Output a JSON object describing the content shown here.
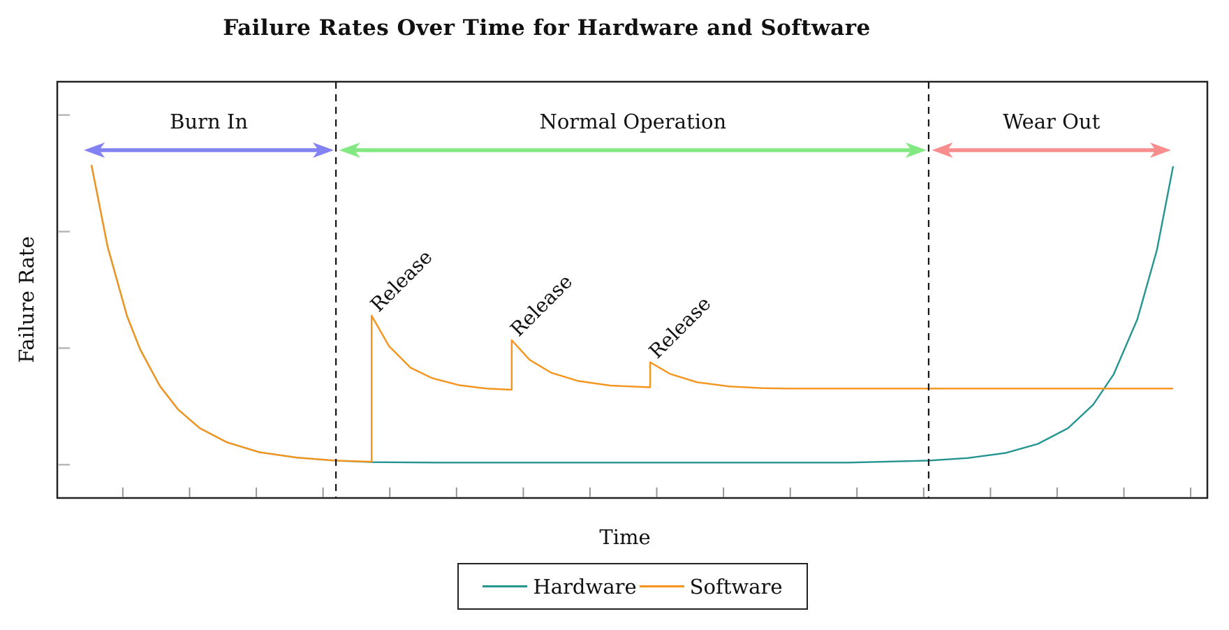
{
  "title": "Failure Rates Over Time for Hardware and Software",
  "axes": {
    "x_label": "Time",
    "y_label": "Failure Rate"
  },
  "legend": {
    "items": [
      {
        "label": "Hardware",
        "color": "#239490"
      },
      {
        "label": "Software",
        "color": "#f5941d"
      }
    ]
  },
  "chart_data": {
    "type": "line",
    "title": "Failure Rates Over Time for Hardware and Software",
    "xlabel": "Time",
    "ylabel": "Failure Rate",
    "xlim": [
      0,
      10
    ],
    "ylim": [
      0,
      1
    ],
    "grid": false,
    "legend_position": "below",
    "x_axis_ticks": [
      0.29,
      0.907,
      1.524,
      2.141,
      2.758,
      3.375,
      3.992,
      4.609,
      5.226,
      5.843,
      6.46,
      7.077,
      7.694,
      8.311,
      8.928,
      9.545,
      10.162
    ],
    "y_axis_ticks": [
      0.08,
      0.36,
      0.64,
      0.92
    ],
    "series": [
      {
        "name": "Hardware",
        "color": "#239490",
        "x": [
          0,
          0.15,
          0.33,
          0.45,
          0.63,
          0.8,
          1.0,
          1.25,
          1.55,
          1.9,
          2.25,
          2.6,
          3.2,
          4.0,
          5.0,
          6.0,
          7.0,
          7.74,
          8.1,
          8.45,
          8.75,
          9.03,
          9.26,
          9.45,
          9.67,
          9.85,
          10.0
        ],
        "y": [
          0.8,
          0.603,
          0.436,
          0.357,
          0.27,
          0.213,
          0.168,
          0.134,
          0.11,
          0.097,
          0.09,
          0.086,
          0.085,
          0.085,
          0.085,
          0.085,
          0.085,
          0.09,
          0.096,
          0.108,
          0.13,
          0.168,
          0.224,
          0.297,
          0.43,
          0.596,
          0.797
        ]
      },
      {
        "name": "Software",
        "color": "#f5941d",
        "x": [
          0,
          0.15,
          0.33,
          0.45,
          0.63,
          0.8,
          1.0,
          1.25,
          1.55,
          1.9,
          2.25,
          2.59,
          2.59,
          2.75,
          2.95,
          3.15,
          3.4,
          3.65,
          3.885,
          3.885,
          4.05,
          4.25,
          4.5,
          4.8,
          5.165,
          5.165,
          5.35,
          5.6,
          5.9,
          6.2,
          6.44,
          7.0,
          8.0,
          9.0,
          10.0
        ],
        "y": [
          0.8,
          0.603,
          0.436,
          0.357,
          0.27,
          0.213,
          0.168,
          0.134,
          0.11,
          0.097,
          0.09,
          0.087,
          0.438,
          0.365,
          0.313,
          0.288,
          0.271,
          0.263,
          0.26,
          0.379,
          0.332,
          0.301,
          0.281,
          0.27,
          0.266,
          0.326,
          0.298,
          0.278,
          0.268,
          0.264,
          0.263,
          0.263,
          0.263,
          0.263,
          0.263
        ]
      }
    ],
    "phase_boundaries": [
      2.26,
      7.74
    ],
    "regions": [
      {
        "label": "Burn In",
        "x_start": -0.07,
        "x_end": 2.24,
        "color": "#8282f2"
      },
      {
        "label": "Normal Operation",
        "x_start": 2.29,
        "x_end": 7.72,
        "color": "#82e882"
      },
      {
        "label": "Wear Out",
        "x_start": 7.77,
        "x_end": 9.98,
        "color": "#f78d8d"
      }
    ],
    "releases": [
      {
        "label": "Release",
        "x": 2.59,
        "y_top": 0.438
      },
      {
        "label": "Release",
        "x": 3.885,
        "y_top": 0.379
      },
      {
        "label": "Release",
        "x": 5.165,
        "y_top": 0.326
      }
    ]
  }
}
